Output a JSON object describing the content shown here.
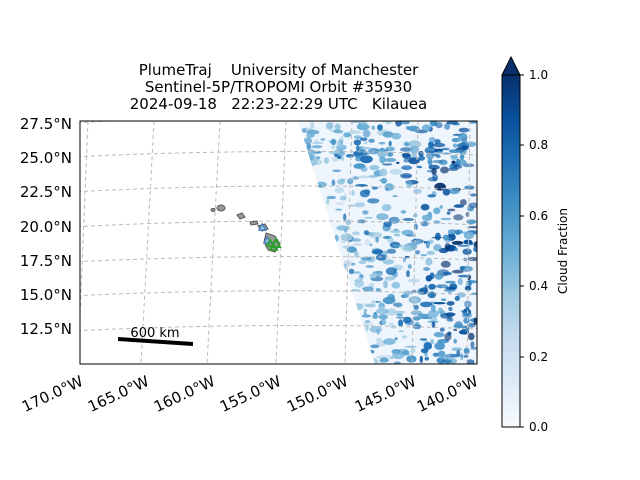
{
  "title": {
    "line1": "PlumeTraj    University of Manchester",
    "line2": "Sentinel-5P/TROPOMI Orbit #35930",
    "line3": "2024-09-18   22:23-22:29 UTC   Kilauea"
  },
  "map": {
    "lat_labels": [
      "27.5°N",
      "25.0°N",
      "22.5°N",
      "20.0°N",
      "17.5°N",
      "15.0°N",
      "12.5°N"
    ],
    "lon_labels": [
      "170.0°W",
      "165.0°W",
      "160.0°W",
      "155.0°W",
      "150.0°W",
      "145.0°W",
      "140.0°W"
    ],
    "scale_bar_label": "600 km",
    "gridline_color": "#bbbbbb",
    "land_color": "#999999",
    "volcano_marker_color": "#2ca02c",
    "other_volcano_color": "#4a7fc1"
  },
  "colorbar": {
    "label": "Cloud Fraction",
    "ticks": [
      "0.0",
      "0.2",
      "0.4",
      "0.6",
      "0.8",
      "1.0"
    ],
    "range": [
      0.0,
      1.0
    ],
    "extend": "max",
    "colormap": "Blues",
    "color_low": "#f7fbff",
    "color_high": "#08306b"
  }
}
